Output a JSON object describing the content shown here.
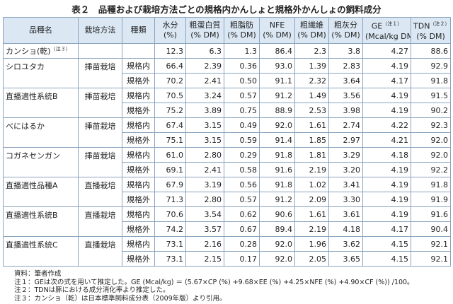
{
  "title": "表２　品種および栽培方法ごとの規格内かんしょと規格外かんしょの飼料成分",
  "table": {
    "headers": [
      {
        "label": "品種名"
      },
      {
        "label": "栽培方法"
      },
      {
        "label": "種類"
      },
      {
        "label": "水分",
        "unit": "(%)"
      },
      {
        "label": "粗蛋白質",
        "unit": "(% DM)"
      },
      {
        "label": "粗脂肪",
        "unit": "(% DM)"
      },
      {
        "label": "NFE",
        "unit": "(% DM)"
      },
      {
        "label": "粗繊維",
        "unit": "(% DM)"
      },
      {
        "label": "粗灰分",
        "unit": "(% DM)"
      },
      {
        "label": "GE",
        "note": "（注１）",
        "unit": "(Mcal/kg DM)"
      },
      {
        "label": "TDN",
        "note": "（注２）",
        "unit": "(% DM)"
      }
    ],
    "reference": {
      "name": "カンショ(乾)",
      "note": "（注３）",
      "values": [
        "12.3",
        "6.3",
        "1.3",
        "86.4",
        "2.3",
        "3.8",
        "4.27",
        "88.6"
      ]
    },
    "groups": [
      {
        "variety": "シロユタカ",
        "method": "挿苗栽培",
        "rows": [
          {
            "kind": "規格内",
            "values": [
              "66.4",
              "2.39",
              "0.36",
              "93.0",
              "1.39",
              "2.83",
              "4.19",
              "92.9"
            ]
          },
          {
            "kind": "規格外",
            "values": [
              "70.2",
              "2.41",
              "0.50",
              "91.1",
              "2.32",
              "3.64",
              "4.17",
              "91.8"
            ]
          }
        ]
      },
      {
        "variety": "直播適性系統B",
        "method": "挿苗栽培",
        "rows": [
          {
            "kind": "規格内",
            "values": [
              "70.5",
              "3.24",
              "0.57",
              "91.2",
              "1.49",
              "3.56",
              "4.19",
              "91.5"
            ]
          },
          {
            "kind": "規格外",
            "values": [
              "75.2",
              "3.89",
              "0.75",
              "88.9",
              "2.53",
              "3.98",
              "4.19",
              "90.2"
            ]
          }
        ]
      },
      {
        "variety": "べにはるか",
        "method": "挿苗栽培",
        "rows": [
          {
            "kind": "規格内",
            "values": [
              "67.4",
              "3.15",
              "0.49",
              "92.0",
              "1.61",
              "2.74",
              "4.22",
              "92.3"
            ]
          },
          {
            "kind": "規格外",
            "values": [
              "75.1",
              "3.15",
              "0.59",
              "91.4",
              "1.85",
              "2.97",
              "4.21",
              "92.0"
            ]
          }
        ]
      },
      {
        "variety": "コガネセンガン",
        "method": "挿苗栽培",
        "rows": [
          {
            "kind": "規格内",
            "values": [
              "61.0",
              "2.80",
              "0.29",
              "91.8",
              "1.81",
              "3.29",
              "4.18",
              "92.0"
            ]
          },
          {
            "kind": "規格外",
            "values": [
              "69.1",
              "2.41",
              "0.58",
              "91.6",
              "2.19",
              "3.20",
              "4.19",
              "92.2"
            ]
          }
        ]
      },
      {
        "variety": "直播適性品種A",
        "method": "直播栽培",
        "rows": [
          {
            "kind": "規格内",
            "values": [
              "67.9",
              "3.19",
              "0.56",
              "91.8",
              "1.02",
              "3.41",
              "4.19",
              "91.8"
            ]
          },
          {
            "kind": "規格外",
            "values": [
              "71.3",
              "2.80",
              "0.57",
              "91.2",
              "2.09",
              "3.30",
              "4.19",
              "91.9"
            ]
          }
        ]
      },
      {
        "variety": "直播適性系統B",
        "method": "直播栽培",
        "rows": [
          {
            "kind": "規格内",
            "values": [
              "70.6",
              "3.54",
              "0.62",
              "90.6",
              "1.61",
              "3.61",
              "4.19",
              "91.6"
            ]
          },
          {
            "kind": "規格外",
            "values": [
              "74.2",
              "3.57",
              "0.67",
              "89.4",
              "2.19",
              "4.18",
              "4.17",
              "90.4"
            ]
          }
        ]
      },
      {
        "variety": "直播適性系統C",
        "method": "直播栽培",
        "rows": [
          {
            "kind": "規格内",
            "values": [
              "73.1",
              "2.16",
              "0.28",
              "92.0",
              "1.96",
              "3.62",
              "4.15",
              "92.1"
            ]
          },
          {
            "kind": "規格外",
            "values": [
              "73.1",
              "2.15",
              "0.17",
              "92.0",
              "2.05",
              "3.65",
              "4.15",
              "92.1"
            ]
          }
        ]
      }
    ]
  },
  "notes": [
    "資料：筆者作成",
    "注１：GEは次の式を用いて推定した。GE (Mcal/kg) ＝ (5.67×CP (%) +9.68×EE (%) +4.25×NFE (%) +4.90×CF (%)) /100。",
    "注２：TDNは豚における成分消化率より推定した。",
    "注３：カンショ（乾）は日本標準飼料成分表（2009年版）より引用。"
  ]
}
